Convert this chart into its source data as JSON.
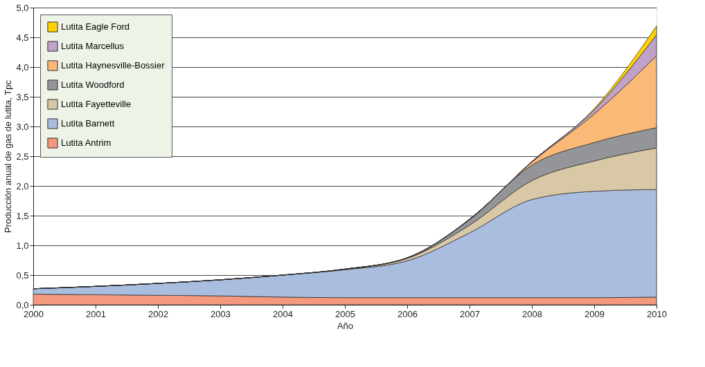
{
  "chart_data": {
    "type": "area",
    "stacked": true,
    "xlabel": "Año",
    "ylabel": "Producción anual de gas de lutita, Tpc",
    "x": [
      2000,
      2001,
      2002,
      2003,
      2004,
      2005,
      2006,
      2007,
      2008,
      2009,
      2010
    ],
    "series": [
      {
        "name": "Lutita Antrim",
        "color": "#f4987e",
        "values": [
          0.18,
          0.17,
          0.16,
          0.15,
          0.13,
          0.12,
          0.12,
          0.12,
          0.12,
          0.12,
          0.13
        ]
      },
      {
        "name": "Lutita Barnett",
        "color": "#a9bedf",
        "values": [
          0.09,
          0.14,
          0.2,
          0.27,
          0.37,
          0.47,
          0.62,
          1.09,
          1.65,
          1.79,
          1.81
        ]
      },
      {
        "name": "Lutita Fayetteville",
        "color": "#d9c8a6",
        "values": [
          0,
          0,
          0,
          0,
          0,
          0.01,
          0.04,
          0.13,
          0.32,
          0.51,
          0.7
        ]
      },
      {
        "name": "Lutita Woodford",
        "color": "#939598",
        "values": [
          0,
          0,
          0,
          0,
          0,
          0,
          0.01,
          0.09,
          0.26,
          0.31,
          0.34
        ]
      },
      {
        "name": "Lutita Haynesville-Bossier",
        "color": "#fbb977",
        "values": [
          0,
          0,
          0,
          0,
          0,
          0,
          0,
          0.01,
          0.05,
          0.48,
          1.21
        ]
      },
      {
        "name": "Lutita Marcellus",
        "color": "#c0a2c8",
        "values": [
          0,
          0,
          0,
          0,
          0,
          0,
          0,
          0,
          0.01,
          0.07,
          0.35
        ]
      },
      {
        "name": "Lutita Eagle Ford",
        "color": "#ffd200",
        "values": [
          0,
          0,
          0,
          0,
          0,
          0,
          0,
          0,
          0,
          0.02,
          0.15
        ]
      }
    ],
    "xlim": [
      2000,
      2010
    ],
    "xticks": [
      2000,
      2001,
      2002,
      2003,
      2004,
      2005,
      2006,
      2007,
      2008,
      2009,
      2010
    ],
    "ylim": [
      0,
      5
    ],
    "yticks": [
      {
        "value": 0,
        "label": "0,0"
      },
      {
        "value": 0.5,
        "label": "0,5"
      },
      {
        "value": 1,
        "label": "1,0"
      },
      {
        "value": 1.5,
        "label": "1,5"
      },
      {
        "value": 2,
        "label": "2,0"
      },
      {
        "value": 2.5,
        "label": "2,5"
      },
      {
        "value": 3,
        "label": "3,0"
      },
      {
        "value": 3.5,
        "label": "3,5"
      },
      {
        "value": 4,
        "label": "4,0"
      },
      {
        "value": 4.5,
        "label": "4,5"
      },
      {
        "value": 5,
        "label": "5,0"
      }
    ],
    "grid": "y",
    "legend": "top left"
  }
}
